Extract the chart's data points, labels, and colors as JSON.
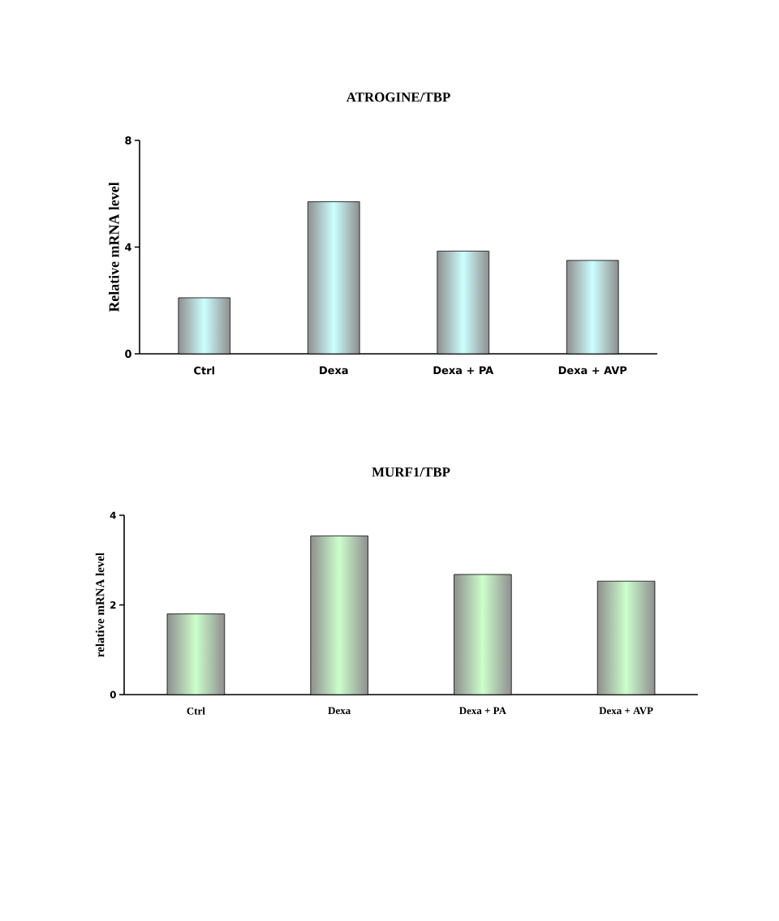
{
  "chart_data": [
    {
      "type": "bar",
      "title": "ATROGINE/TBP",
      "ylabel": "Relative mRNA level",
      "categories": [
        "Ctrl",
        "Dexa",
        "Dexa + PA",
        "Dexa + AVP"
      ],
      "values": [
        2.1,
        5.7,
        3.85,
        3.5
      ],
      "color": "#ccffff",
      "ylim": [
        0,
        8
      ],
      "yticks": [
        0,
        4,
        8
      ]
    },
    {
      "type": "bar",
      "title": "MURF1/TBP",
      "ylabel": "relative mRNA level",
      "categories": [
        "Ctrl",
        "Dexa",
        "Dexa + PA",
        "Dexa + AVP"
      ],
      "values": [
        1.8,
        3.54,
        2.68,
        2.53
      ],
      "color": "#ccffcc",
      "ylim": [
        0,
        4
      ],
      "yticks": [
        0,
        2,
        4
      ]
    }
  ]
}
